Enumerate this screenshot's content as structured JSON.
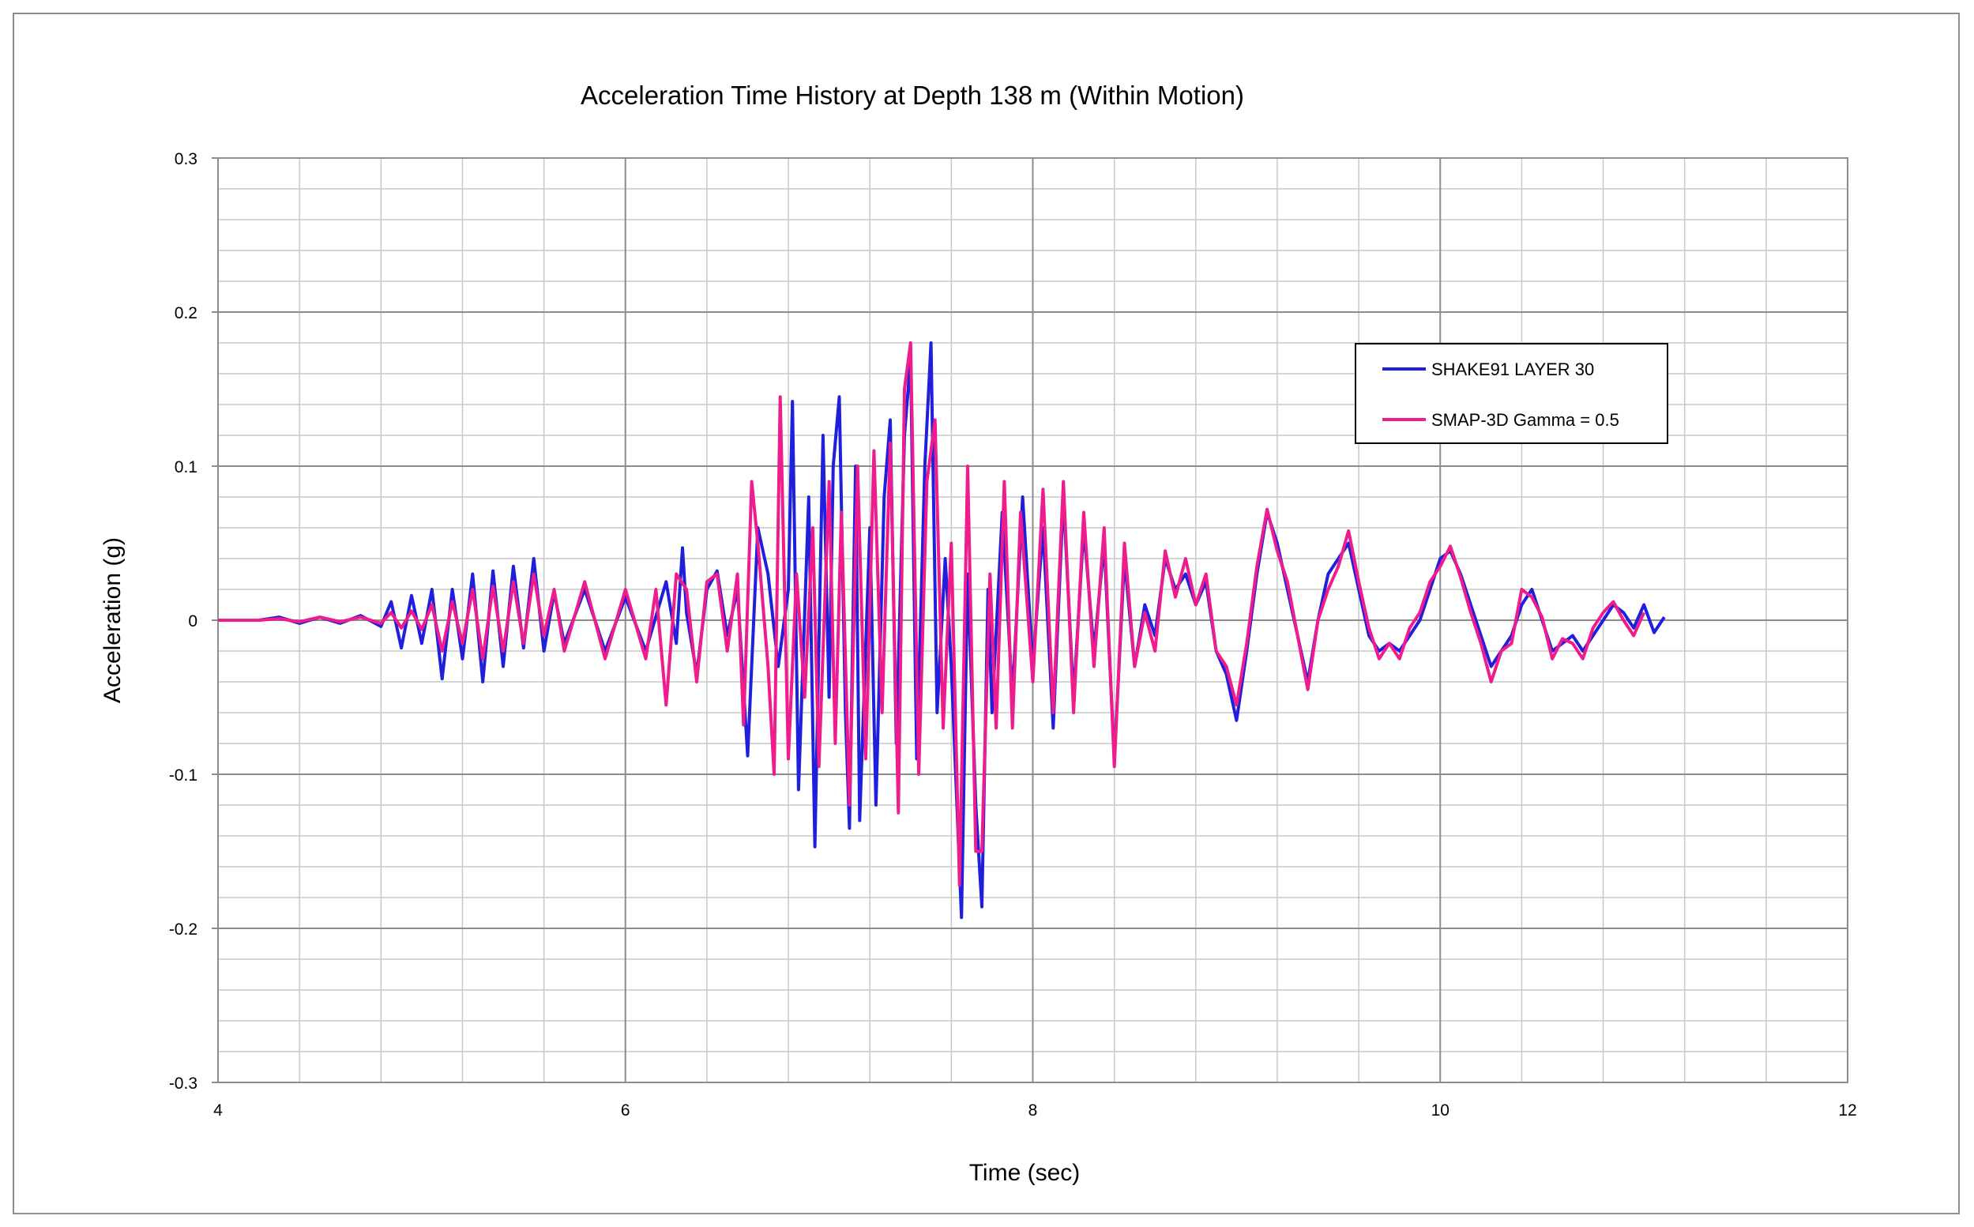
{
  "chart_data": {
    "type": "line",
    "title": "Acceleration Time History  at Depth 138 m (Within Motion)",
    "xlabel": "Time (sec)",
    "ylabel": "Acceleration (g)",
    "xlim": [
      4,
      12
    ],
    "ylim": [
      -0.3,
      0.3
    ],
    "x_ticks": [
      4,
      6,
      8,
      10,
      12
    ],
    "y_ticks": [
      -0.3,
      -0.2,
      -0.1,
      0,
      0.1,
      0.2,
      0.3
    ],
    "x_tick_labels": [
      "4",
      "6",
      "8",
      "10",
      "12"
    ],
    "y_tick_labels": [
      "-0.3",
      "-0.2",
      "-0.1",
      "0",
      "0.1",
      "0.2",
      "0.3"
    ],
    "x_minor_step": 0.4,
    "y_minor_step": 0.02,
    "grid": true,
    "legend_position": "upper-right",
    "series": [
      {
        "name": "SHAKE91  LAYER 30",
        "color": "#1f1fdc",
        "points": [
          [
            4.0,
            0
          ],
          [
            4.2,
            0
          ],
          [
            4.3,
            0.002
          ],
          [
            4.4,
            -0.002
          ],
          [
            4.5,
            0.002
          ],
          [
            4.6,
            -0.002
          ],
          [
            4.7,
            0.003
          ],
          [
            4.8,
            -0.004
          ],
          [
            4.85,
            0.012
          ],
          [
            4.9,
            -0.018
          ],
          [
            4.95,
            0.016
          ],
          [
            5.0,
            -0.015
          ],
          [
            5.05,
            0.02
          ],
          [
            5.1,
            -0.038
          ],
          [
            5.15,
            0.02
          ],
          [
            5.2,
            -0.025
          ],
          [
            5.25,
            0.03
          ],
          [
            5.3,
            -0.04
          ],
          [
            5.35,
            0.032
          ],
          [
            5.4,
            -0.03
          ],
          [
            5.45,
            0.035
          ],
          [
            5.5,
            -0.018
          ],
          [
            5.55,
            0.04
          ],
          [
            5.6,
            -0.02
          ],
          [
            5.65,
            0.018
          ],
          [
            5.7,
            -0.015
          ],
          [
            5.8,
            0.02
          ],
          [
            5.9,
            -0.02
          ],
          [
            6.0,
            0.015
          ],
          [
            6.1,
            -0.02
          ],
          [
            6.2,
            0.025
          ],
          [
            6.25,
            -0.015
          ],
          [
            6.28,
            0.047
          ],
          [
            6.3,
            0.005
          ],
          [
            6.35,
            -0.035
          ],
          [
            6.4,
            0.02
          ],
          [
            6.45,
            0.032
          ],
          [
            6.5,
            -0.01
          ],
          [
            6.55,
            0.02
          ],
          [
            6.6,
            -0.088
          ],
          [
            6.65,
            0.06
          ],
          [
            6.7,
            0.03
          ],
          [
            6.75,
            -0.03
          ],
          [
            6.8,
            0.02
          ],
          [
            6.82,
            0.142
          ],
          [
            6.85,
            -0.11
          ],
          [
            6.9,
            0.08
          ],
          [
            6.93,
            -0.147
          ],
          [
            6.97,
            0.12
          ],
          [
            7.0,
            -0.05
          ],
          [
            7.02,
            0.1
          ],
          [
            7.05,
            0.145
          ],
          [
            7.08,
            -0.06
          ],
          [
            7.1,
            -0.135
          ],
          [
            7.13,
            0.1
          ],
          [
            7.15,
            -0.13
          ],
          [
            7.2,
            0.06
          ],
          [
            7.23,
            -0.12
          ],
          [
            7.27,
            0.08
          ],
          [
            7.3,
            0.13
          ],
          [
            7.33,
            -0.08
          ],
          [
            7.37,
            0.12
          ],
          [
            7.4,
            0.17
          ],
          [
            7.43,
            -0.09
          ],
          [
            7.47,
            0.1
          ],
          [
            7.5,
            0.18
          ],
          [
            7.53,
            -0.06
          ],
          [
            7.57,
            0.04
          ],
          [
            7.6,
            -0.03
          ],
          [
            7.65,
            -0.193
          ],
          [
            7.68,
            0.03
          ],
          [
            7.72,
            -0.12
          ],
          [
            7.75,
            -0.186
          ],
          [
            7.78,
            0.02
          ],
          [
            7.8,
            -0.06
          ],
          [
            7.85,
            0.07
          ],
          [
            7.9,
            -0.05
          ],
          [
            7.95,
            0.08
          ],
          [
            8.0,
            -0.03
          ],
          [
            8.05,
            0.06
          ],
          [
            8.1,
            -0.07
          ],
          [
            8.15,
            0.08
          ],
          [
            8.2,
            -0.05
          ],
          [
            8.25,
            0.06
          ],
          [
            8.3,
            -0.02
          ],
          [
            8.35,
            0.05
          ],
          [
            8.4,
            -0.09
          ],
          [
            8.45,
            0.04
          ],
          [
            8.5,
            -0.03
          ],
          [
            8.55,
            0.01
          ],
          [
            8.6,
            -0.01
          ],
          [
            8.65,
            0.04
          ],
          [
            8.7,
            0.02
          ],
          [
            8.75,
            0.03
          ],
          [
            8.8,
            0.01
          ],
          [
            8.85,
            0.025
          ],
          [
            8.9,
            -0.02
          ],
          [
            8.95,
            -0.035
          ],
          [
            9.0,
            -0.065
          ],
          [
            9.05,
            -0.02
          ],
          [
            9.1,
            0.03
          ],
          [
            9.15,
            0.07
          ],
          [
            9.2,
            0.05
          ],
          [
            9.25,
            0.02
          ],
          [
            9.3,
            -0.01
          ],
          [
            9.35,
            -0.04
          ],
          [
            9.4,
            0.0
          ],
          [
            9.45,
            0.03
          ],
          [
            9.5,
            0.04
          ],
          [
            9.55,
            0.05
          ],
          [
            9.6,
            0.02
          ],
          [
            9.65,
            -0.01
          ],
          [
            9.7,
            -0.02
          ],
          [
            9.75,
            -0.015
          ],
          [
            9.8,
            -0.02
          ],
          [
            9.85,
            -0.01
          ],
          [
            9.9,
            0.0
          ],
          [
            9.95,
            0.02
          ],
          [
            10.0,
            0.04
          ],
          [
            10.05,
            0.045
          ],
          [
            10.1,
            0.03
          ],
          [
            10.15,
            0.01
          ],
          [
            10.2,
            -0.01
          ],
          [
            10.25,
            -0.03
          ],
          [
            10.3,
            -0.02
          ],
          [
            10.35,
            -0.01
          ],
          [
            10.4,
            0.01
          ],
          [
            10.45,
            0.02
          ],
          [
            10.5,
            0.0
          ],
          [
            10.55,
            -0.02
          ],
          [
            10.6,
            -0.015
          ],
          [
            10.65,
            -0.01
          ],
          [
            10.7,
            -0.02
          ],
          [
            10.75,
            -0.01
          ],
          [
            10.8,
            0.0
          ],
          [
            10.85,
            0.01
          ],
          [
            10.9,
            0.005
          ],
          [
            10.95,
            -0.005
          ],
          [
            11.0,
            0.01
          ],
          [
            11.05,
            -0.008
          ],
          [
            11.1,
            0.002
          ]
        ]
      },
      {
        "name": "SMAP-3D  Gamma  = 0.5",
        "color": "#ee1c8c",
        "points": [
          [
            4.0,
            0
          ],
          [
            4.2,
            0
          ],
          [
            4.3,
            0.001
          ],
          [
            4.4,
            -0.001
          ],
          [
            4.5,
            0.002
          ],
          [
            4.6,
            -0.001
          ],
          [
            4.7,
            0.002
          ],
          [
            4.8,
            -0.002
          ],
          [
            4.85,
            0.005
          ],
          [
            4.9,
            -0.005
          ],
          [
            4.95,
            0.006
          ],
          [
            5.0,
            -0.006
          ],
          [
            5.05,
            0.01
          ],
          [
            5.1,
            -0.02
          ],
          [
            5.15,
            0.012
          ],
          [
            5.2,
            -0.015
          ],
          [
            5.25,
            0.02
          ],
          [
            5.3,
            -0.025
          ],
          [
            5.35,
            0.022
          ],
          [
            5.4,
            -0.02
          ],
          [
            5.45,
            0.025
          ],
          [
            5.5,
            -0.015
          ],
          [
            5.55,
            0.03
          ],
          [
            5.6,
            -0.01
          ],
          [
            5.65,
            0.02
          ],
          [
            5.7,
            -0.02
          ],
          [
            5.8,
            0.025
          ],
          [
            5.9,
            -0.025
          ],
          [
            6.0,
            0.02
          ],
          [
            6.1,
            -0.025
          ],
          [
            6.15,
            0.02
          ],
          [
            6.2,
            -0.055
          ],
          [
            6.25,
            0.03
          ],
          [
            6.3,
            0.02
          ],
          [
            6.35,
            -0.04
          ],
          [
            6.4,
            0.025
          ],
          [
            6.45,
            0.03
          ],
          [
            6.5,
            -0.02
          ],
          [
            6.55,
            0.03
          ],
          [
            6.58,
            -0.068
          ],
          [
            6.62,
            0.09
          ],
          [
            6.65,
            0.05
          ],
          [
            6.7,
            -0.03
          ],
          [
            6.73,
            -0.1
          ],
          [
            6.76,
            0.145
          ],
          [
            6.8,
            -0.09
          ],
          [
            6.84,
            0.03
          ],
          [
            6.88,
            -0.05
          ],
          [
            6.92,
            0.06
          ],
          [
            6.95,
            -0.095
          ],
          [
            7.0,
            0.09
          ],
          [
            7.03,
            -0.08
          ],
          [
            7.06,
            0.07
          ],
          [
            7.1,
            -0.12
          ],
          [
            7.14,
            0.1
          ],
          [
            7.18,
            -0.09
          ],
          [
            7.22,
            0.11
          ],
          [
            7.26,
            -0.06
          ],
          [
            7.3,
            0.115
          ],
          [
            7.34,
            -0.125
          ],
          [
            7.37,
            0.15
          ],
          [
            7.4,
            0.18
          ],
          [
            7.44,
            -0.1
          ],
          [
            7.48,
            0.09
          ],
          [
            7.52,
            0.13
          ],
          [
            7.56,
            -0.07
          ],
          [
            7.6,
            0.05
          ],
          [
            7.64,
            -0.172
          ],
          [
            7.68,
            0.1
          ],
          [
            7.72,
            -0.15
          ],
          [
            7.75,
            -0.15
          ],
          [
            7.79,
            0.03
          ],
          [
            7.82,
            -0.07
          ],
          [
            7.86,
            0.09
          ],
          [
            7.9,
            -0.07
          ],
          [
            7.94,
            0.07
          ],
          [
            8.0,
            -0.04
          ],
          [
            8.05,
            0.085
          ],
          [
            8.1,
            -0.06
          ],
          [
            8.15,
            0.09
          ],
          [
            8.2,
            -0.06
          ],
          [
            8.25,
            0.07
          ],
          [
            8.3,
            -0.03
          ],
          [
            8.35,
            0.06
          ],
          [
            8.4,
            -0.095
          ],
          [
            8.45,
            0.05
          ],
          [
            8.5,
            -0.03
          ],
          [
            8.55,
            0.005
          ],
          [
            8.6,
            -0.02
          ],
          [
            8.65,
            0.045
          ],
          [
            8.7,
            0.015
          ],
          [
            8.75,
            0.04
          ],
          [
            8.8,
            0.01
          ],
          [
            8.85,
            0.03
          ],
          [
            8.9,
            -0.02
          ],
          [
            8.95,
            -0.03
          ],
          [
            9.0,
            -0.055
          ],
          [
            9.05,
            -0.015
          ],
          [
            9.1,
            0.035
          ],
          [
            9.15,
            0.072
          ],
          [
            9.2,
            0.045
          ],
          [
            9.25,
            0.025
          ],
          [
            9.3,
            -0.01
          ],
          [
            9.35,
            -0.045
          ],
          [
            9.4,
            0.0
          ],
          [
            9.45,
            0.02
          ],
          [
            9.5,
            0.035
          ],
          [
            9.55,
            0.058
          ],
          [
            9.6,
            0.025
          ],
          [
            9.65,
            -0.005
          ],
          [
            9.7,
            -0.025
          ],
          [
            9.75,
            -0.015
          ],
          [
            9.8,
            -0.025
          ],
          [
            9.85,
            -0.005
          ],
          [
            9.9,
            0.005
          ],
          [
            9.95,
            0.025
          ],
          [
            10.0,
            0.035
          ],
          [
            10.05,
            0.048
          ],
          [
            10.1,
            0.028
          ],
          [
            10.15,
            0.005
          ],
          [
            10.2,
            -0.015
          ],
          [
            10.25,
            -0.04
          ],
          [
            10.3,
            -0.02
          ],
          [
            10.35,
            -0.015
          ],
          [
            10.4,
            0.02
          ],
          [
            10.45,
            0.015
          ],
          [
            10.5,
            0.002
          ],
          [
            10.55,
            -0.025
          ],
          [
            10.6,
            -0.012
          ],
          [
            10.65,
            -0.015
          ],
          [
            10.7,
            -0.025
          ],
          [
            10.75,
            -0.005
          ],
          [
            10.8,
            0.005
          ],
          [
            10.85,
            0.012
          ],
          [
            10.9,
            0.0
          ],
          [
            10.95,
            -0.01
          ],
          [
            11.0,
            0.005
          ]
        ]
      }
    ]
  }
}
